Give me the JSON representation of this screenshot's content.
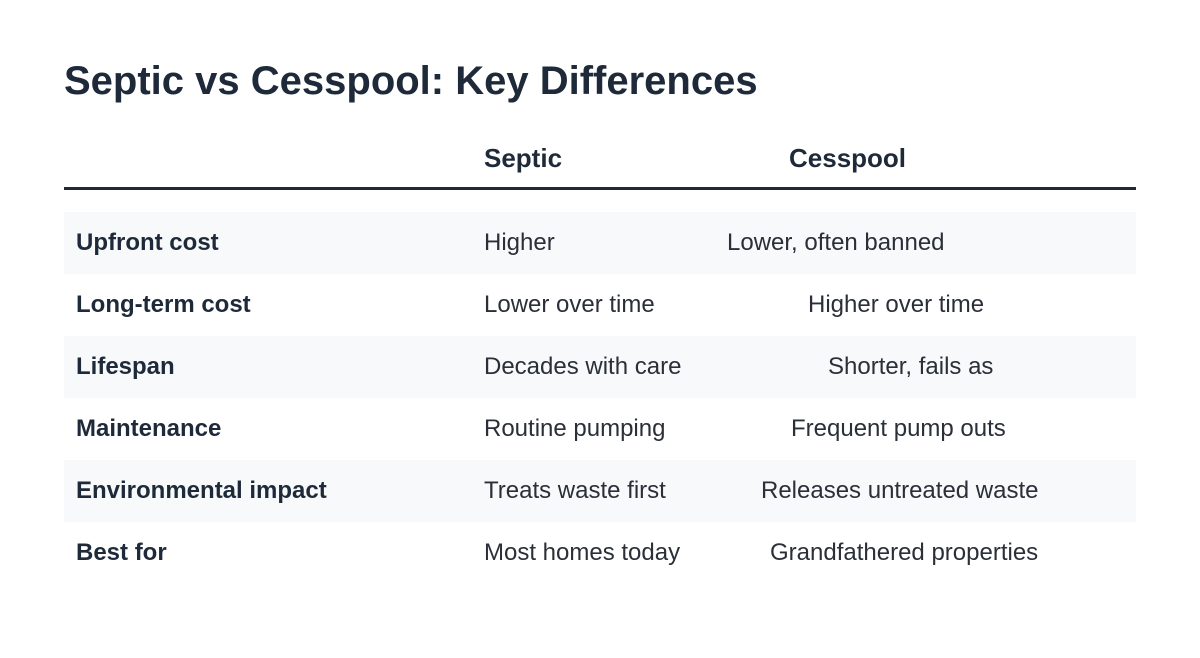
{
  "title": "Septic vs Cesspool: Key Differences",
  "table": {
    "headers": {
      "label": "",
      "septic": "Septic",
      "cesspool": "Cesspool"
    },
    "rows": [
      {
        "label": "Upfront cost",
        "septic": "Higher",
        "cesspool": "Lower, often banned"
      },
      {
        "label": "Long-term cost",
        "septic": "Lower over time",
        "cesspool": "Higher over time"
      },
      {
        "label": "Lifespan",
        "septic": "Decades with care",
        "cesspool": "Shorter, fails as"
      },
      {
        "label": "Maintenance",
        "septic": "Routine pumping",
        "cesspool": "Frequent pump outs"
      },
      {
        "label": "Environmental impact",
        "septic": "Treats waste first",
        "cesspool": "Releases untreated waste"
      },
      {
        "label": "Best for",
        "septic": "Most homes today",
        "cesspool": "Grandfathered properties"
      }
    ]
  }
}
